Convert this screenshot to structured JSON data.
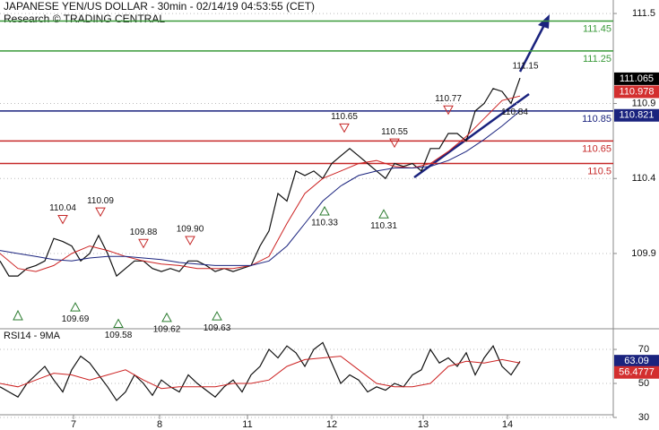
{
  "chart_data": [
    {
      "type": "line",
      "title": "JAPANESE YEN/US DOLLAR - 30min - 02/14/19 04:53:55 (CET)",
      "subtitle": "Research © TRADING CENTRAL",
      "xlim": [
        0,
        342
      ],
      "ylim": [
        109.41,
        111.59
      ],
      "yticks": [
        111.5,
        110.9,
        110.4,
        109.9
      ],
      "grid": true,
      "series": [
        {
          "color": "#111111",
          "x": [
            0,
            5,
            10,
            15,
            20,
            25,
            30,
            35,
            40,
            45,
            50,
            55,
            60,
            65,
            70,
            75,
            80,
            85,
            90,
            95,
            100,
            105,
            110,
            115,
            120,
            125,
            130,
            135,
            140,
            145,
            150,
            155,
            160,
            165,
            170,
            175,
            180,
            185,
            190,
            195,
            200,
            205,
            210,
            215,
            220,
            225,
            230,
            235,
            240,
            245,
            250,
            255,
            260,
            265,
            270,
            275,
            280,
            285,
            290
          ],
          "values": [
            109.85,
            109.75,
            109.75,
            109.8,
            109.82,
            109.85,
            110.0,
            109.98,
            109.95,
            109.85,
            109.9,
            110.02,
            109.9,
            109.75,
            109.8,
            109.85,
            109.85,
            109.8,
            109.78,
            109.8,
            109.78,
            109.85,
            109.85,
            109.82,
            109.78,
            109.8,
            109.78,
            109.8,
            109.82,
            109.95,
            110.05,
            110.3,
            110.25,
            110.45,
            110.42,
            110.45,
            110.4,
            110.5,
            110.55,
            110.6,
            110.55,
            110.5,
            110.45,
            110.4,
            110.5,
            110.48,
            110.5,
            110.45,
            110.6,
            110.6,
            110.7,
            110.7,
            110.65,
            110.85,
            110.9,
            111.0,
            110.98,
            110.9,
            111.07
          ]
        },
        {
          "color": "#cc2222",
          "x": [
            0,
            10,
            20,
            30,
            40,
            50,
            60,
            70,
            80,
            90,
            100,
            110,
            120,
            130,
            140,
            150,
            160,
            170,
            180,
            190,
            200,
            210,
            220,
            230,
            240,
            250,
            260,
            270,
            280,
            290
          ],
          "values": [
            109.9,
            109.8,
            109.78,
            109.82,
            109.9,
            109.95,
            109.92,
            109.88,
            109.85,
            109.83,
            109.82,
            109.8,
            109.8,
            109.8,
            109.82,
            109.88,
            110.1,
            110.3,
            110.4,
            110.45,
            110.5,
            110.52,
            110.48,
            110.47,
            110.5,
            110.58,
            110.68,
            110.8,
            110.92,
            110.95
          ]
        },
        {
          "color": "#1a237e",
          "x": [
            0,
            10,
            20,
            30,
            40,
            50,
            60,
            70,
            80,
            90,
            100,
            110,
            120,
            130,
            140,
            150,
            160,
            170,
            180,
            190,
            200,
            210,
            220,
            230,
            240,
            250,
            260,
            270,
            280,
            290
          ],
          "values": [
            109.92,
            109.9,
            109.88,
            109.86,
            109.85,
            109.87,
            109.88,
            109.88,
            109.87,
            109.86,
            109.84,
            109.83,
            109.82,
            109.82,
            109.82,
            109.85,
            109.95,
            110.1,
            110.25,
            110.35,
            110.42,
            110.45,
            110.47,
            110.47,
            110.48,
            110.52,
            110.58,
            110.66,
            110.75,
            110.85
          ]
        }
      ],
      "levels": [
        {
          "value": 111.45,
          "color": "#3a9a3a"
        },
        {
          "value": 111.25,
          "color": "#3a9a3a"
        },
        {
          "value": 110.85,
          "color": "#1a237e"
        },
        {
          "value": 110.65,
          "color": "#c62828"
        },
        {
          "value": 110.5,
          "color": "#c62828"
        }
      ],
      "highs": [
        {
          "x": 35,
          "value": 110.04
        },
        {
          "x": 56,
          "value": 110.09
        },
        {
          "x": 80,
          "value": 109.88
        },
        {
          "x": 106,
          "value": 109.9,
          "label": "109.90"
        },
        {
          "x": 192,
          "value": 110.65
        },
        {
          "x": 220,
          "value": 110.55
        },
        {
          "x": 250,
          "value": 110.77
        }
      ],
      "lows": [
        {
          "x": 42,
          "value": 109.69
        },
        {
          "x": 66,
          "value": 109.58
        },
        {
          "x": 93,
          "value": 109.62
        },
        {
          "x": 121,
          "value": 109.63
        },
        {
          "x": 181,
          "value": 110.33
        },
        {
          "x": 214,
          "value": 110.31
        }
      ],
      "annotations": [
        {
          "x": 287,
          "value": 110.84
        },
        {
          "x": 293,
          "value": 111.15
        }
      ],
      "price_boxes": [
        {
          "value": 111.065,
          "color": "#000000"
        },
        {
          "value": 110.978,
          "color": "#d32f2f"
        },
        {
          "value": 110.821,
          "color": "#1a237e"
        }
      ]
    },
    {
      "type": "line",
      "title": "RSI14 - 9MA",
      "xlim": [
        0,
        342
      ],
      "xticks": [
        {
          "value": 41,
          "label": "7"
        },
        {
          "value": 89,
          "label": "8"
        },
        {
          "value": 138,
          "label": "11"
        },
        {
          "value": 185,
          "label": "12"
        },
        {
          "value": 236,
          "label": "13"
        },
        {
          "value": 283,
          "label": "14"
        }
      ],
      "ylim": [
        30,
        81.6
      ],
      "yticks": [
        70,
        50,
        30
      ],
      "grid": true,
      "series": [
        {
          "color": "#111111",
          "x": [
            0,
            5,
            10,
            15,
            20,
            25,
            30,
            35,
            40,
            45,
            50,
            55,
            60,
            65,
            70,
            75,
            80,
            85,
            90,
            95,
            100,
            105,
            110,
            115,
            120,
            125,
            130,
            135,
            140,
            145,
            150,
            155,
            160,
            165,
            170,
            175,
            180,
            185,
            190,
            195,
            200,
            205,
            210,
            215,
            220,
            225,
            230,
            235,
            240,
            245,
            250,
            255,
            260,
            265,
            270,
            275,
            280,
            285,
            290
          ],
          "values": [
            48,
            45,
            42,
            50,
            55,
            60,
            52,
            45,
            58,
            66,
            62,
            55,
            48,
            40,
            45,
            55,
            50,
            43,
            52,
            48,
            45,
            55,
            50,
            46,
            42,
            48,
            52,
            45,
            55,
            60,
            70,
            65,
            72,
            68,
            60,
            70,
            74,
            62,
            50,
            55,
            52,
            45,
            48,
            46,
            50,
            48,
            55,
            58,
            70,
            62,
            65,
            60,
            68,
            55,
            65,
            72,
            60,
            55,
            63
          ]
        },
        {
          "color": "#cc2222",
          "x": [
            0,
            10,
            20,
            30,
            40,
            50,
            60,
            70,
            80,
            90,
            100,
            110,
            120,
            130,
            140,
            150,
            160,
            170,
            180,
            190,
            200,
            210,
            220,
            230,
            240,
            250,
            260,
            270,
            280,
            290
          ],
          "values": [
            50,
            48,
            52,
            56,
            55,
            52,
            55,
            58,
            52,
            47,
            48,
            48,
            48,
            50,
            50,
            52,
            60,
            64,
            65,
            66,
            58,
            50,
            48,
            48,
            50,
            60,
            63,
            62,
            64,
            62
          ]
        }
      ],
      "price_boxes": [
        {
          "value": 63.09,
          "color": "#1a237e"
        },
        {
          "value": 56.4777,
          "color": "#d32f2f"
        }
      ]
    }
  ]
}
